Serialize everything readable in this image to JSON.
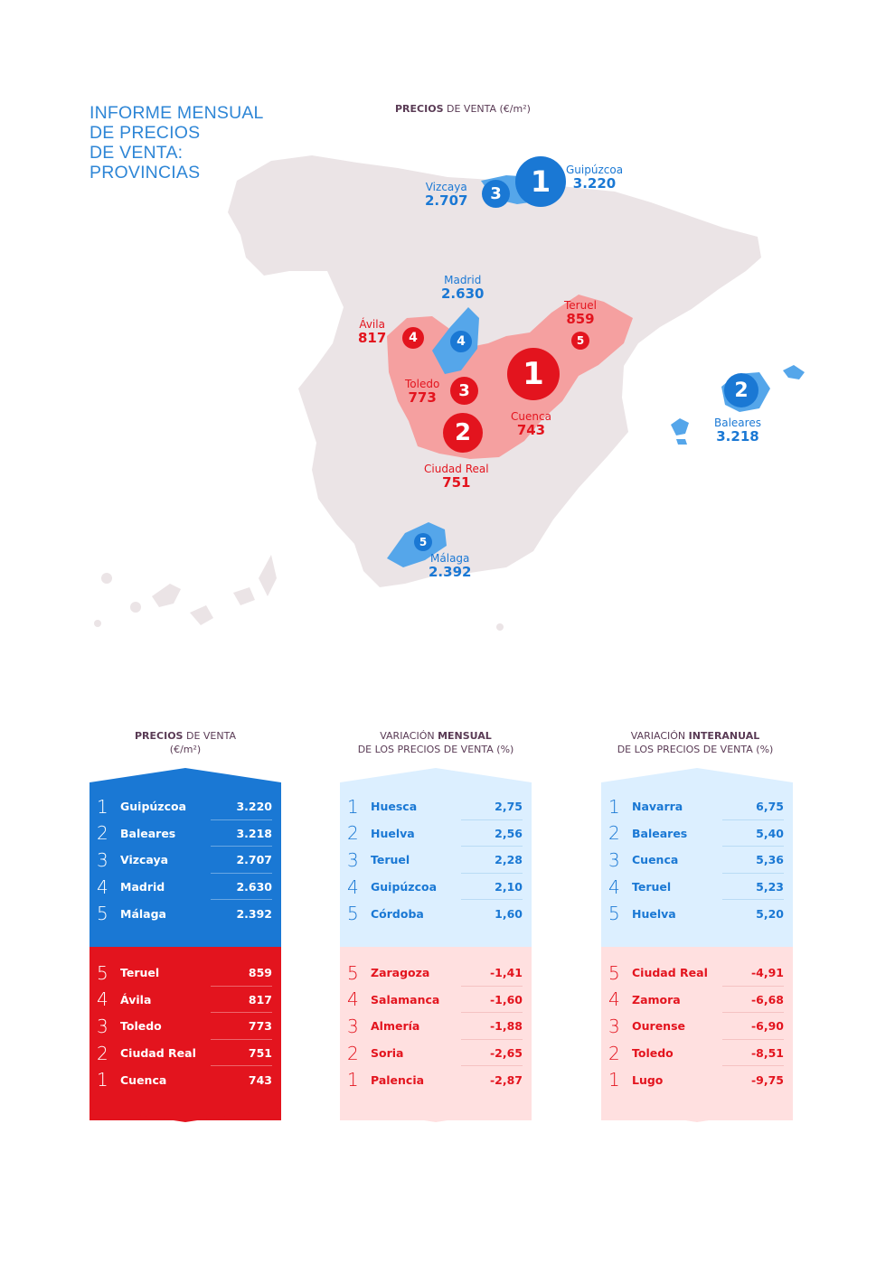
{
  "title": {
    "lines": [
      "INFORME MENSUAL",
      "DE PRECIOS",
      "DE VENTA:",
      "PROVINCIAS"
    ]
  },
  "map": {
    "heading_bold": "PRECIOS",
    "heading_rest": " DE VENTA (€/m²)",
    "labels": {
      "guipuzcoa": {
        "rank": "1",
        "name": "Guipúzcoa",
        "value": "3.220"
      },
      "vizcaya": {
        "rank": "3",
        "name": "Vizcaya",
        "value": "2.707"
      },
      "madrid": {
        "rank": "4",
        "name": "Madrid",
        "value": "2.630"
      },
      "avila": {
        "rank": "4",
        "name": "Ávila",
        "value": "817"
      },
      "teruel": {
        "rank": "5",
        "name": "Teruel",
        "value": "859"
      },
      "toledo": {
        "rank": "3",
        "name": "Toledo",
        "value": "773"
      },
      "cuenca": {
        "rank": "1",
        "name": "Cuenca",
        "value": "743"
      },
      "ciudad_real": {
        "rank": "2",
        "name": "Ciudad Real",
        "value": "751"
      },
      "baleares": {
        "rank": "2",
        "name": "Baleares",
        "value": "3.218"
      },
      "malaga": {
        "rank": "5",
        "name": "Málaga",
        "value": "2.392"
      }
    },
    "colors": {
      "land": "#ebe4e6",
      "blue": "#1a78d4",
      "light_blue": "#55a6ea",
      "red": "#e3141e",
      "light_red": "#f5a0a0"
    }
  },
  "columns": [
    {
      "head_line1_pre": "",
      "head_line1_bold": "PRECIOS",
      "head_line1_post": " DE VENTA",
      "head_line2": "(€/m²)",
      "top": [
        {
          "rank": "1",
          "name": "Guipúzcoa",
          "value": "3.220"
        },
        {
          "rank": "2",
          "name": "Baleares",
          "value": "3.218"
        },
        {
          "rank": "3",
          "name": "Vizcaya",
          "value": "2.707"
        },
        {
          "rank": "4",
          "name": "Madrid",
          "value": "2.630"
        },
        {
          "rank": "5",
          "name": "Málaga",
          "value": "2.392"
        }
      ],
      "bottom": [
        {
          "rank": "5",
          "name": "Teruel",
          "value": "859"
        },
        {
          "rank": "4",
          "name": "Ávila",
          "value": "817"
        },
        {
          "rank": "3",
          "name": "Toledo",
          "value": "773"
        },
        {
          "rank": "2",
          "name": "Ciudad Real",
          "value": "751"
        },
        {
          "rank": "1",
          "name": "Cuenca",
          "value": "743"
        }
      ]
    },
    {
      "head_line1_pre": "VARIACIÓN ",
      "head_line1_bold": "MENSUAL",
      "head_line1_post": "",
      "head_line2": "DE LOS PRECIOS DE VENTA (%)",
      "top": [
        {
          "rank": "1",
          "name": "Huesca",
          "value": "2,75"
        },
        {
          "rank": "2",
          "name": "Huelva",
          "value": "2,56"
        },
        {
          "rank": "3",
          "name": "Teruel",
          "value": "2,28"
        },
        {
          "rank": "4",
          "name": "Guipúzcoa",
          "value": "2,10"
        },
        {
          "rank": "5",
          "name": "Córdoba",
          "value": "1,60"
        }
      ],
      "bottom": [
        {
          "rank": "5",
          "name": "Zaragoza",
          "value": "-1,41"
        },
        {
          "rank": "4",
          "name": "Salamanca",
          "value": "-1,60"
        },
        {
          "rank": "3",
          "name": "Almería",
          "value": "-1,88"
        },
        {
          "rank": "2",
          "name": "Soria",
          "value": "-2,65"
        },
        {
          "rank": "1",
          "name": "Palencia",
          "value": "-2,87"
        }
      ]
    },
    {
      "head_line1_pre": "VARIACIÓN ",
      "head_line1_bold": "INTERANUAL",
      "head_line1_post": "",
      "head_line2": "DE LOS PRECIOS DE VENTA (%)",
      "top": [
        {
          "rank": "1",
          "name": "Navarra",
          "value": "6,75"
        },
        {
          "rank": "2",
          "name": "Baleares",
          "value": "5,40"
        },
        {
          "rank": "3",
          "name": "Cuenca",
          "value": "5,36"
        },
        {
          "rank": "4",
          "name": "Teruel",
          "value": "5,23"
        },
        {
          "rank": "5",
          "name": "Huelva",
          "value": "5,20"
        }
      ],
      "bottom": [
        {
          "rank": "5",
          "name": "Ciudad Real",
          "value": "-4,91"
        },
        {
          "rank": "4",
          "name": "Zamora",
          "value": "-6,68"
        },
        {
          "rank": "3",
          "name": "Ourense",
          "value": "-6,90"
        },
        {
          "rank": "2",
          "name": "Toledo",
          "value": "-8,51"
        },
        {
          "rank": "1",
          "name": "Lugo",
          "value": "-9,75"
        }
      ]
    }
  ]
}
